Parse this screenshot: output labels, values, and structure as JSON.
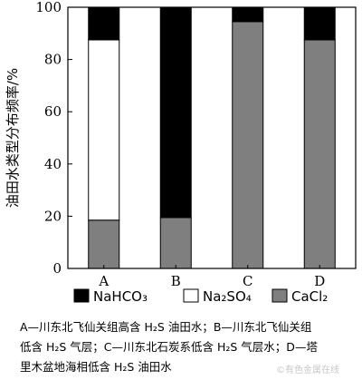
{
  "chart_data": {
    "type": "bar",
    "stacked": true,
    "categories": [
      "A",
      "B",
      "C",
      "D"
    ],
    "series": [
      {
        "name": "CaCl2",
        "label": "CaCl₂",
        "color": "#7f7f7f",
        "fill_kind": "gray",
        "values": [
          18.5,
          19.5,
          94.5,
          87.5
        ]
      },
      {
        "name": "Na2SO4",
        "label": "Na₂SO₄",
        "color": "#ffffff",
        "fill_kind": "white",
        "values": [
          69.0,
          0,
          0,
          0
        ]
      },
      {
        "name": "NaHCO3",
        "label": "NaHCO₃",
        "color": "#000000",
        "fill_kind": "black",
        "values": [
          12.5,
          80.5,
          5.5,
          12.5
        ]
      }
    ],
    "ylabel": "油田水类型分布频率/%",
    "xlabel": "",
    "ylim": [
      0,
      100
    ],
    "yticks": [
      0,
      20,
      40,
      60,
      80,
      100
    ],
    "legend_order": [
      "NaHCO3",
      "Na2SO4",
      "CaCl2"
    ],
    "legend_placement": "bottom",
    "grid": false
  },
  "caption": {
    "line1": "A—川东北飞仙关组高含 H₂S 油田水；B—川东北飞仙关组",
    "line2": "低含 H₂S 气层；C—川东北石炭系低含 H₂S 气层水；D—塔",
    "line3": "里木盆地海相低含 H₂S 油田水"
  },
  "watermark": "©有色金属在线"
}
